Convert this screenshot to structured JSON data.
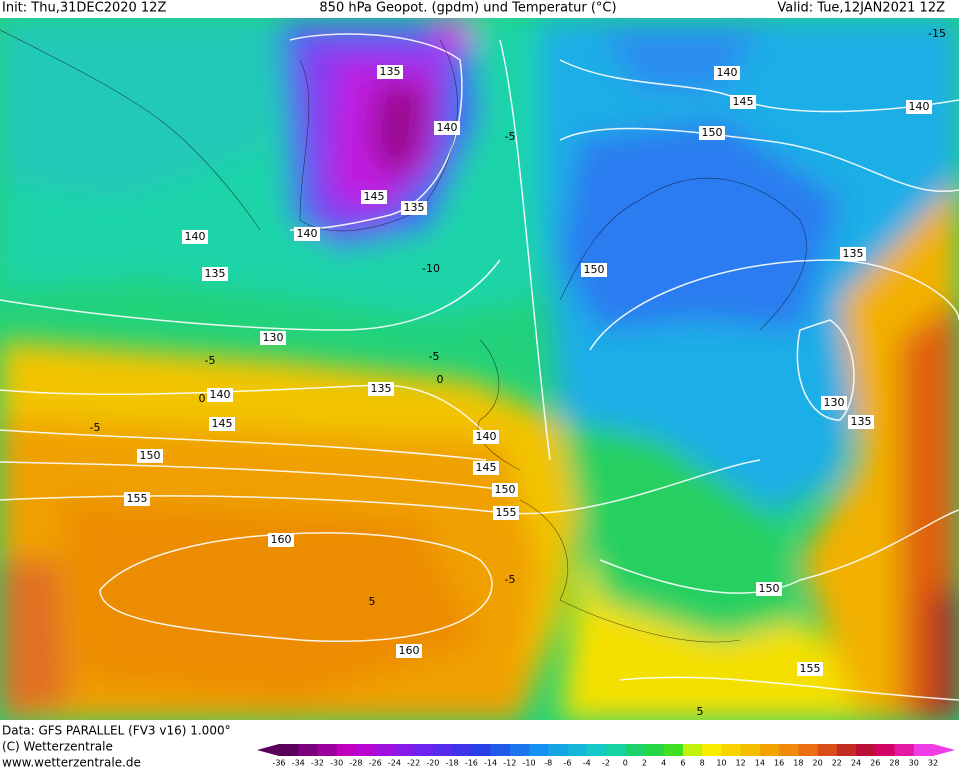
{
  "header": {
    "init": "Init: Thu,31DEC2020 12Z",
    "title": "850 hPa Geopot. (gpdm) und Temperatur (°C)",
    "valid": "Valid: Tue,12JAN2021 12Z"
  },
  "map": {
    "geopotential_labels": [
      135,
      140,
      145,
      135,
      140,
      140,
      135,
      130,
      140,
      135,
      145,
      140,
      150,
      145,
      150,
      155,
      155,
      160,
      160,
      140,
      145,
      150,
      140,
      150,
      135,
      130,
      135,
      150,
      155
    ],
    "temperature_labels": [
      -15,
      -5,
      -10,
      -5,
      -5,
      0,
      -5,
      0,
      -5,
      5,
      5
    ]
  },
  "footer": {
    "data": "Data: GFS PARALLEL (FV3 v16) 1.000°",
    "copyright": "(C) Wetterzentrale",
    "url": "www.wetterzentrale.de"
  },
  "colorbar": {
    "ticks": [
      -36,
      -34,
      -32,
      -30,
      -28,
      -26,
      -24,
      -22,
      -20,
      -18,
      -16,
      -14,
      -12,
      -10,
      -8,
      -6,
      -4,
      -2,
      0,
      2,
      4,
      6,
      8,
      10,
      12,
      14,
      16,
      18,
      20,
      22,
      24,
      26,
      28,
      30,
      32
    ]
  }
}
